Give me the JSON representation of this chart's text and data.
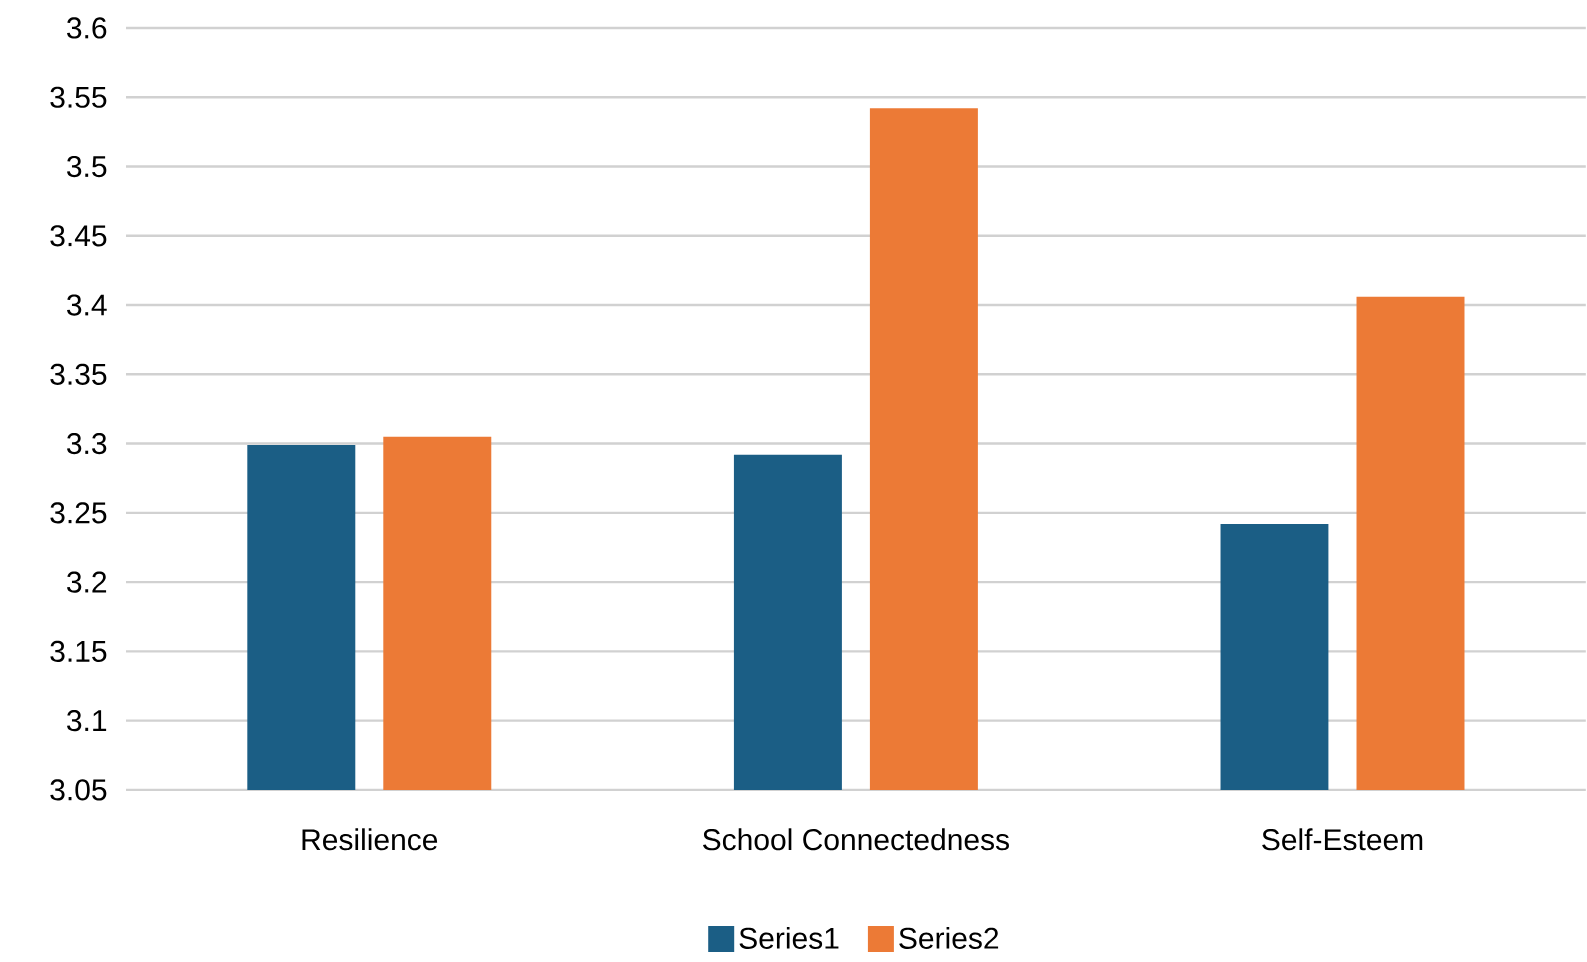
{
  "chart_data": {
    "type": "bar",
    "categories": [
      "Resilience",
      "School Connectedness",
      "Self-Esteem"
    ],
    "series": [
      {
        "name": "Series1",
        "color": "#1b5e85",
        "values": [
          3.299,
          3.292,
          3.242
        ]
      },
      {
        "name": "Series2",
        "color": "#ec7a36",
        "values": [
          3.305,
          3.542,
          3.406
        ]
      }
    ],
    "ylim": [
      3.05,
      3.6
    ],
    "yticks": [
      3.05,
      3.1,
      3.15,
      3.2,
      3.25,
      3.3,
      3.35,
      3.4,
      3.45,
      3.5,
      3.55,
      3.6
    ],
    "grid": "y",
    "legend": "bottom"
  }
}
